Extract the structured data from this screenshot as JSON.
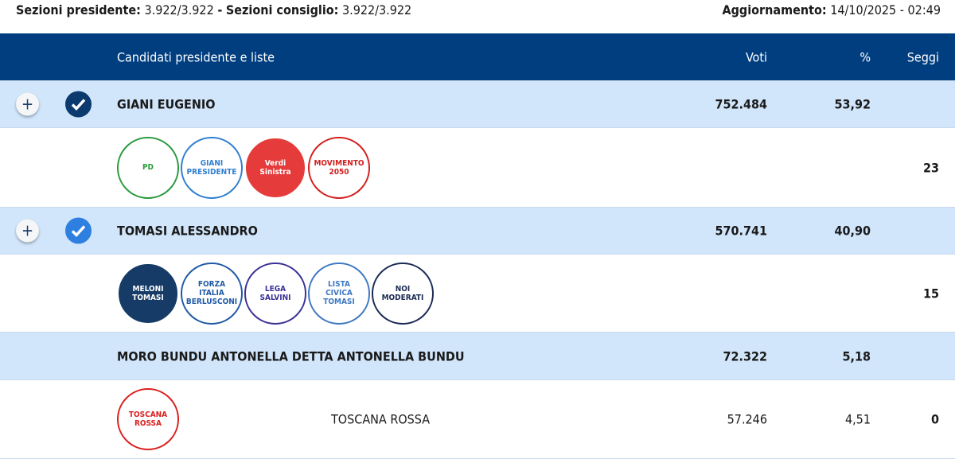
{
  "summary": {
    "sez_pres_label": "Sezioni presidente:",
    "sez_pres_value": "3.922/3.922",
    "sep": "-",
    "sez_cons_label": "Sezioni consiglio:",
    "sez_cons_value": "3.922/3.922",
    "agg_label": "Aggiornamento:",
    "agg_value": "14/10/2025 - 02:49"
  },
  "header": {
    "candidates": "Candidati presidente e liste",
    "votes": "Voti",
    "pct": "%",
    "seats": "Seggi"
  },
  "colors": {
    "header": "#003e80",
    "candidate_row": "#d1e5fb",
    "check_dark": "#0b3a6e",
    "check_light": "#2d7fe0"
  },
  "candidates": [
    {
      "name": "GIANI EUGENIO",
      "votes": "752.484",
      "pct": "53,92",
      "seats": "23",
      "check": "dark",
      "logos": [
        {
          "text": "PD",
          "bg": "#fff",
          "fg": "#2b9a3f"
        },
        {
          "text": "GIANI PRESIDENTE",
          "bg": "#fff",
          "fg": "#2f7fd1"
        },
        {
          "text": "Verdi Sinistra",
          "bg": "#e53b3b",
          "fg": "#fff"
        },
        {
          "text": "MOVIMENTO 2050",
          "bg": "#fff",
          "fg": "#d31d1d"
        }
      ]
    },
    {
      "name": "TOMASI ALESSANDRO",
      "votes": "570.741",
      "pct": "40,90",
      "seats": "15",
      "check": "light",
      "logos": [
        {
          "text": "MELONI TOMASI",
          "bg": "#153b66",
          "fg": "#fff"
        },
        {
          "text": "FORZA ITALIA BERLUSCONI",
          "bg": "#fff",
          "fg": "#1f5aa6"
        },
        {
          "text": "LEGA SALVINI",
          "bg": "#fff",
          "fg": "#3a3296"
        },
        {
          "text": "LISTA CIVICA TOMASI",
          "bg": "#fff",
          "fg": "#3f78c2"
        },
        {
          "text": "NOI MODERATI",
          "bg": "#fff",
          "fg": "#1b2a55"
        }
      ]
    },
    {
      "name": "MORO BUNDU ANTONELLA DETTA ANTONELLA BUNDU",
      "votes": "72.322",
      "pct": "5,18",
      "lists": [
        {
          "name": "TOSCANA ROSSA",
          "votes": "57.246",
          "pct": "4,51",
          "seats": "0"
        }
      ],
      "logos": [
        {
          "text": "TOSCANA ROSSA",
          "bg": "#fff",
          "fg": "#d9221f"
        }
      ]
    }
  ]
}
